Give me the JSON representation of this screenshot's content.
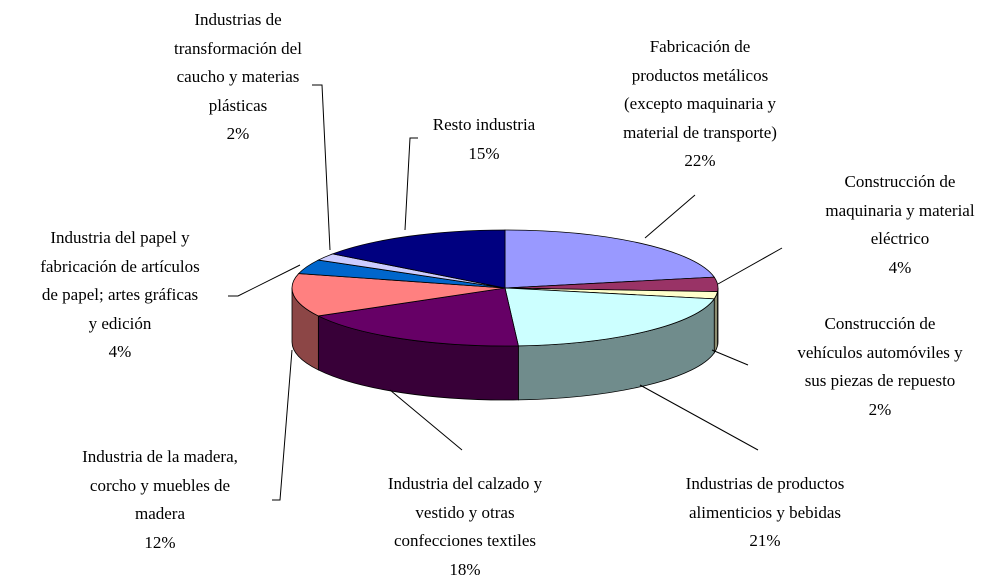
{
  "chart_data": {
    "type": "pie",
    "categories": [
      "Fabricación de\nproductos metálicos\n(excepto maquinaria y\nmaterial de transporte)",
      "Construcción de\nmaquinaria y material\neléctrico",
      "Construcción de\nvehículos automóviles y\nsus piezas de repuesto",
      "Industrias de productos\nalimenticios y bebidas",
      "Industria del calzado y\nvestido y otras\nconfecciones textiles",
      "Industria de la madera,\ncorcho y muebles de\nmadera",
      "Industria del papel y\nfabricación de artículos\nde papel; artes gráficas\ny edición",
      "Industrias de\ntransformación del\ncaucho y materias\nplásticas",
      "Resto industria"
    ],
    "values": [
      22,
      4,
      2,
      21,
      18,
      12,
      4,
      2,
      15
    ],
    "value_labels": [
      "22%",
      "4%",
      "2%",
      "21%",
      "18%",
      "12%",
      "4%",
      "2%",
      "15%"
    ],
    "colors": [
      "#9999ff",
      "#993366",
      "#ffffcc",
      "#ccffff",
      "#660066",
      "#ff8080",
      "#0066cc",
      "#ccccff",
      "#000080"
    ]
  }
}
